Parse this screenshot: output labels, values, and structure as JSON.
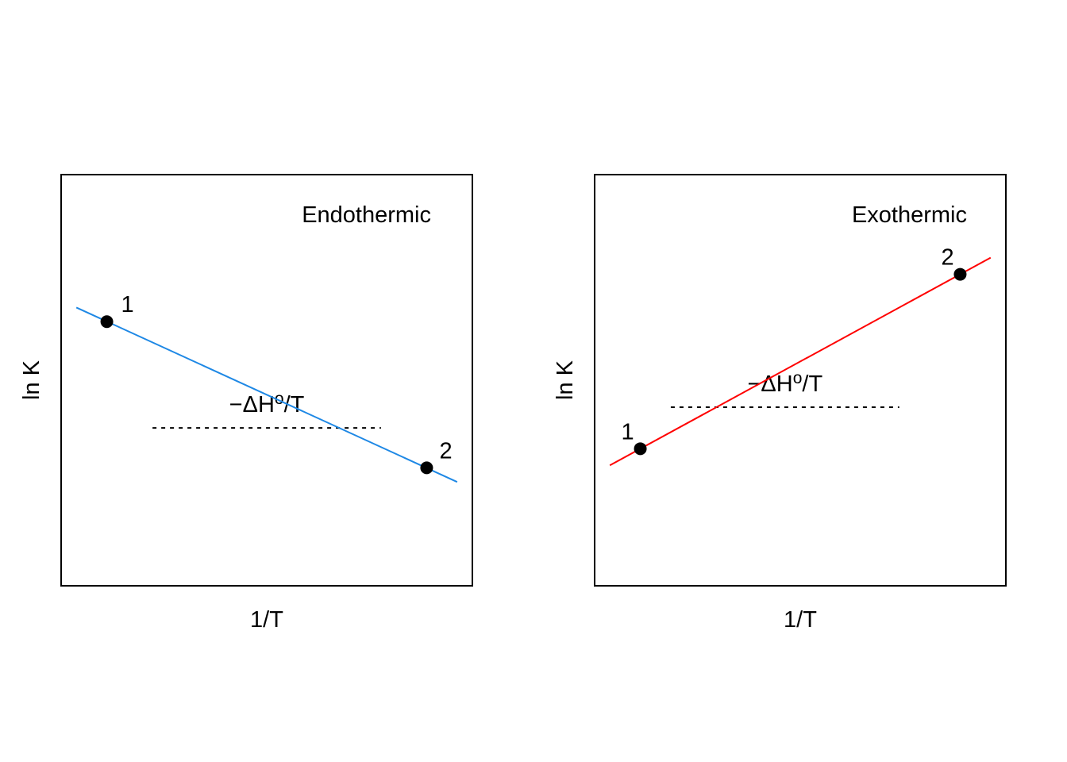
{
  "chart_data": [
    {
      "type": "line",
      "title": "Endothermic",
      "xlabel": "1/T",
      "ylabel": "ln K",
      "series": [
        {
          "color": "#1e88e5",
          "x": [
            0.0,
            1.0
          ],
          "y": [
            0.6,
            0.18
          ]
        }
      ],
      "points": [
        {
          "label": "1",
          "x": 0.08,
          "y": 0.566
        },
        {
          "label": "2",
          "x": 0.92,
          "y": 0.214
        }
      ],
      "annotation": {
        "text_prefix": "−ΔH",
        "text_sup": "o",
        "text_suffix": "/T",
        "segment_x": [
          0.2,
          0.8
        ],
        "segment_y": 0.31
      },
      "xlim": [
        -0.04,
        1.04
      ],
      "ylim": [
        -0.07,
        0.92
      ],
      "grid": false
    },
    {
      "type": "line",
      "title": "Exothermic",
      "xlabel": "1/T",
      "ylabel": "ln K",
      "series": [
        {
          "color": "#ff0000",
          "x": [
            0.0,
            1.0
          ],
          "y": [
            0.22,
            0.72
          ]
        }
      ],
      "points": [
        {
          "label": "1",
          "x": 0.08,
          "y": 0.26
        },
        {
          "label": "2",
          "x": 0.92,
          "y": 0.68
        }
      ],
      "annotation": {
        "text_prefix": "−ΔH",
        "text_sup": "o",
        "text_suffix": "/T",
        "segment_x": [
          0.16,
          0.76
        ],
        "segment_y": 0.36
      },
      "xlim": [
        -0.04,
        1.04
      ],
      "ylim": [
        -0.07,
        0.92
      ],
      "grid": false
    }
  ]
}
